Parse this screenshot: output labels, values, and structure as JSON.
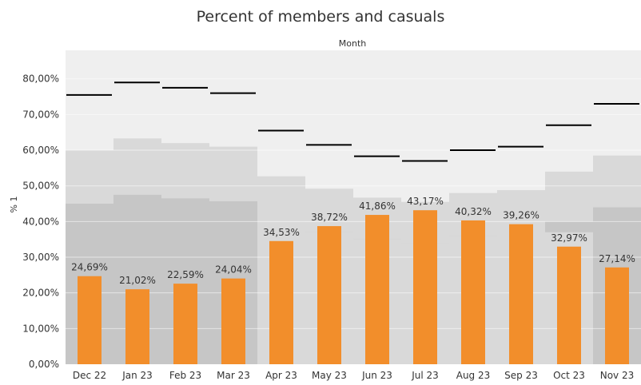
{
  "chart_data": {
    "type": "bar",
    "title": "Percent of members and casuals",
    "column_header": "Month",
    "ylabel": "% 1",
    "xlabel": "",
    "ylim": [
      0,
      0.88
    ],
    "yticks": [
      0,
      0.1,
      0.2,
      0.3,
      0.4,
      0.5,
      0.6,
      0.7,
      0.8
    ],
    "ytick_labels": [
      "0,00%",
      "10,00%",
      "20,00%",
      "30,00%",
      "40,00%",
      "50,00%",
      "60,00%",
      "70,00%",
      "80,00%"
    ],
    "categories": [
      "Dec 22",
      "Jan 23",
      "Feb 23",
      "Mar 23",
      "Apr 23",
      "May 23",
      "Jun 23",
      "Jul 23",
      "Aug 23",
      "Sep 23",
      "Oct 23",
      "Nov 23"
    ],
    "series": [
      {
        "values": [
          0.2469,
          0.2102,
          0.2259,
          0.2404,
          0.3453,
          0.3872,
          0.4186,
          0.4317,
          0.4032,
          0.3926,
          0.3297,
          0.2714
        ],
        "labels": [
          "24,69%",
          "21,02%",
          "22,59%",
          "24,04%",
          "34,53%",
          "38,72%",
          "41,86%",
          "43,17%",
          "40,32%",
          "39,26%",
          "32,97%",
          "27,14%"
        ],
        "color": "#f28e2b"
      }
    ],
    "reference_lines": [
      0.755,
      0.79,
      0.775,
      0.76,
      0.655,
      0.615,
      0.583,
      0.57,
      0.6,
      0.61,
      0.67,
      0.73
    ],
    "distribution_bands": {
      "inner_low": [
        0.0,
        0.0,
        0.0,
        0.0,
        0.4,
        0.37,
        0.35,
        0.34,
        0.36,
        0.365,
        0.37,
        0.0
      ],
      "inner_high": [
        0.45,
        0.475,
        0.465,
        0.457,
        0.4,
        0.37,
        0.35,
        0.34,
        0.36,
        0.365,
        0.4,
        0.44
      ],
      "outer_high": [
        0.6,
        0.633,
        0.62,
        0.61,
        0.527,
        0.492,
        0.467,
        0.455,
        0.48,
        0.488,
        0.54,
        0.585
      ]
    },
    "colors": {
      "plot_background": "#efefef",
      "outer_band": "#d9d9d9",
      "inner_band": "#c6c6c6",
      "reference_line": "#000000",
      "text": "#333333"
    },
    "grid": true,
    "legend": "none"
  }
}
